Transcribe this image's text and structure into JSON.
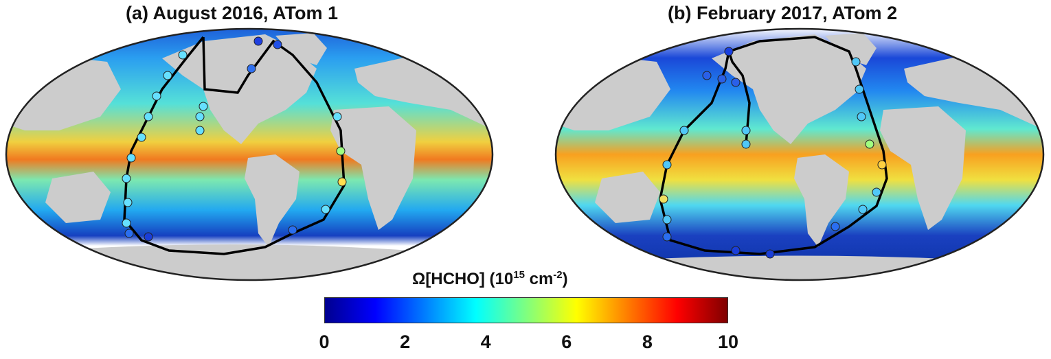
{
  "panels": [
    {
      "title": "(a) August 2016, ATom 1"
    },
    {
      "title": "(b) February 2017, ATom 2"
    }
  ],
  "colorbar": {
    "label_main": "Ω[HCHO] (10",
    "label_exp1": "15",
    "label_mid": " cm",
    "label_exp2": "-2",
    "label_end": ")",
    "ticks": [
      "0",
      "2",
      "4",
      "6",
      "8",
      "10"
    ],
    "colormap": "jet",
    "range": [
      0,
      10
    ]
  },
  "colors": {
    "land": "#cccccc",
    "no_data": "#ffffff",
    "flight_track": "#000000"
  }
}
